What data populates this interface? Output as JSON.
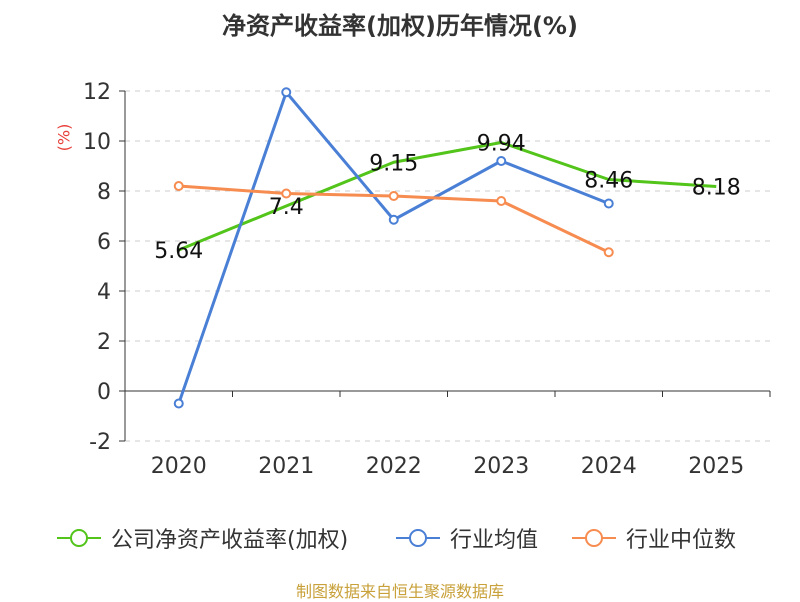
{
  "chart_data": {
    "type": "line",
    "title": "净资产收益率(加权)历年情况(%)",
    "ylabel": "(%)",
    "categories": [
      "2020",
      "2021",
      "2022",
      "2023",
      "2024",
      "2025"
    ],
    "ylim": [
      -2,
      12
    ],
    "yticks": [
      -2,
      0,
      2,
      4,
      6,
      8,
      10,
      12
    ],
    "grid": true,
    "legend_position": "bottom",
    "series": [
      {
        "name": "公司净资产收益率(加权)",
        "color": "#52c41a",
        "values": [
          5.64,
          7.4,
          9.15,
          9.94,
          8.46,
          8.18
        ],
        "labels": [
          "5.64",
          "7.4",
          "9.15",
          "9.94",
          "8.46",
          "8.18"
        ]
      },
      {
        "name": "行业均值",
        "color": "#4a7fd6",
        "values": [
          -0.5,
          11.95,
          6.85,
          9.2,
          7.5,
          null
        ],
        "labels": []
      },
      {
        "name": "行业中位数",
        "color": "#f78c50",
        "values": [
          8.2,
          7.9,
          7.8,
          7.6,
          5.55,
          null
        ],
        "labels": []
      }
    ]
  },
  "source": "制图数据来自恒生聚源数据库"
}
